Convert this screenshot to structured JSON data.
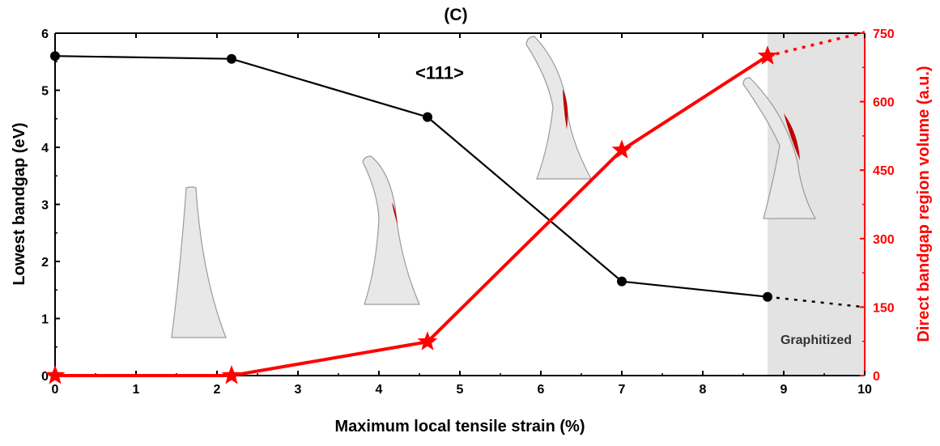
{
  "figure": {
    "panel_label": "(C)"
  },
  "colors": {
    "left": "#000000",
    "right": "#ff0000",
    "shade": "#e3e3e3",
    "tip": "#e8e8e8",
    "tip_edge": "#9a9a9a",
    "tip_red": "#c00000"
  },
  "chart_data": {
    "type": "line",
    "title": "",
    "xlabel": "Maximum local tensile strain (%)",
    "ylabel": "Lowest bandgap (eV)",
    "y2label": "Direct bandgap region volume (a.u.)",
    "xlim": [
      0,
      10
    ],
    "ylim": [
      0,
      6
    ],
    "y2lim": [
      0,
      750
    ],
    "xticks": [
      "0",
      "1",
      "2",
      "3",
      "4",
      "5",
      "6",
      "7",
      "8",
      "9",
      "10"
    ],
    "yticks": [
      "0",
      "1",
      "2",
      "3",
      "4",
      "5",
      "6"
    ],
    "y2ticks": [
      "0",
      "150",
      "300",
      "450",
      "600",
      "750"
    ],
    "grid": false,
    "legend": "none",
    "series": [
      {
        "axis": "left",
        "marker": "circle",
        "x": [
          0,
          2.18,
          4.6,
          7.0,
          8.8
        ],
        "values": [
          5.6,
          5.55,
          4.53,
          1.65,
          1.38
        ],
        "extrapolated": {
          "x": [
            8.8,
            10
          ],
          "values": [
            1.38,
            1.2
          ]
        }
      },
      {
        "axis": "right",
        "marker": "star",
        "x": [
          0,
          2.18,
          4.6,
          7.0,
          8.8
        ],
        "values": [
          0,
          0,
          74,
          494,
          700
        ],
        "extrapolated": {
          "x": [
            8.8,
            10
          ],
          "values": [
            700,
            752
          ]
        }
      }
    ],
    "annotations": [
      {
        "text": "<111>"
      },
      {
        "text": "Graphitized",
        "region": {
          "x": [
            8.8,
            10
          ]
        }
      }
    ]
  }
}
